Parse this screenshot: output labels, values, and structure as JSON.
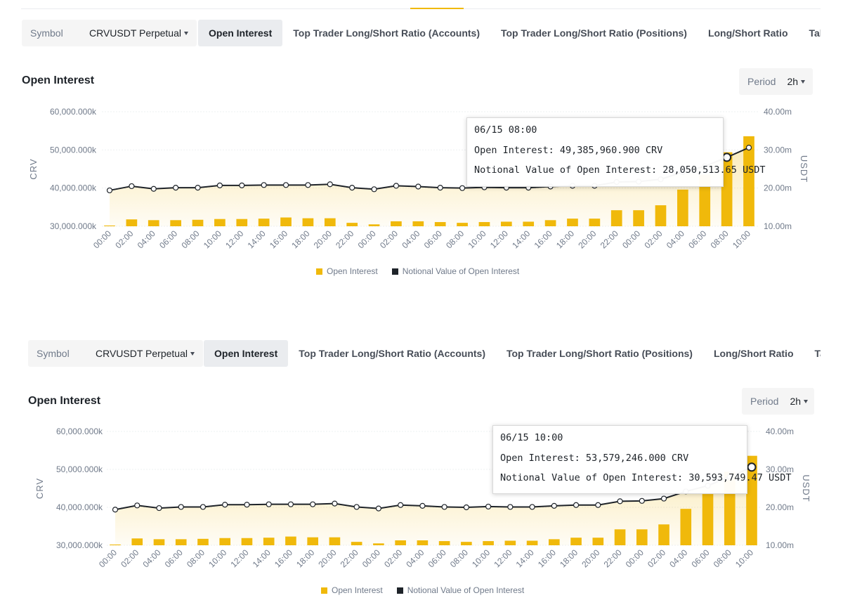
{
  "toolbar": {
    "symbol_label": "Symbol",
    "symbol_value": "CRVUSDT Perpetual",
    "tabs": [
      "Open Interest",
      "Top Trader Long/Short Ratio (Accounts)",
      "Top Trader Long/Short Ratio (Positions)",
      "Long/Short Ratio",
      "Taker Buy/Sell Volume"
    ],
    "active_tab": "Open Interest"
  },
  "period": {
    "label": "Period",
    "value": "2h"
  },
  "panels": [
    {
      "title": "Open Interest",
      "tooltip": {
        "date": "06/15 08:00",
        "line1": "Open Interest: 49,385,960.900 CRV",
        "line2": "Notional Value of Open Interest: 28,050,513.65 USDT"
      }
    },
    {
      "title": "Open Interest",
      "tooltip": {
        "date": "06/15 10:00",
        "line1": "Open Interest: 53,579,246.000 CRV",
        "line2": "Notional Value of Open Interest: 30,593,749.47 USDT"
      }
    }
  ],
  "chart_data": {
    "type": "bar",
    "title": "Open Interest",
    "x": [
      "00:00",
      "02:00",
      "04:00",
      "06:00",
      "08:00",
      "10:00",
      "12:00",
      "14:00",
      "16:00",
      "18:00",
      "20:00",
      "22:00",
      "00:00",
      "02:00",
      "04:00",
      "06:00",
      "08:00",
      "10:00",
      "12:00",
      "14:00",
      "16:00",
      "18:00",
      "20:00",
      "22:00",
      "00:00",
      "02:00",
      "04:00",
      "06:00",
      "08:00",
      "10:00"
    ],
    "series": [
      {
        "name": "Open Interest",
        "axis": "left",
        "type": "bar",
        "color": "#f0b90b",
        "values": [
          30200000,
          31800000,
          31600000,
          31600000,
          31700000,
          31900000,
          31900000,
          32000000,
          32300000,
          32100000,
          32100000,
          30900000,
          30500000,
          31300000,
          31300000,
          31100000,
          30900000,
          31100000,
          31200000,
          31200000,
          31600000,
          32000000,
          32000000,
          34200000,
          34200000,
          35500000,
          39600000,
          43500000,
          49385960.9,
          53579246
        ]
      },
      {
        "name": "Notional Value of Open Interest",
        "axis": "right",
        "type": "line",
        "color": "#1e2329",
        "values": [
          19400000,
          20500000,
          19800000,
          20100000,
          20100000,
          20700000,
          20700000,
          20800000,
          20800000,
          20800000,
          21000000,
          20100000,
          19700000,
          20600000,
          20400000,
          20100000,
          20000000,
          20200000,
          20100000,
          20100000,
          20400000,
          20600000,
          20600000,
          21600000,
          21700000,
          22300000,
          24200000,
          25700000,
          28050513.65,
          30593749.47
        ]
      }
    ],
    "ylabel": "CRV",
    "y2label": "USDT",
    "yticks": [
      "30,000.000k",
      "40,000.000k",
      "50,000.000k",
      "60,000.000k"
    ],
    "y2ticks": [
      "10.00m",
      "20.00m",
      "30.00m",
      "40.00m"
    ],
    "ylim": [
      30000000,
      60000000
    ],
    "y2lim": [
      10000000,
      40000000
    ],
    "legend": [
      "Open Interest",
      "Notional Value of Open Interest"
    ],
    "legend_position": "bottom"
  }
}
